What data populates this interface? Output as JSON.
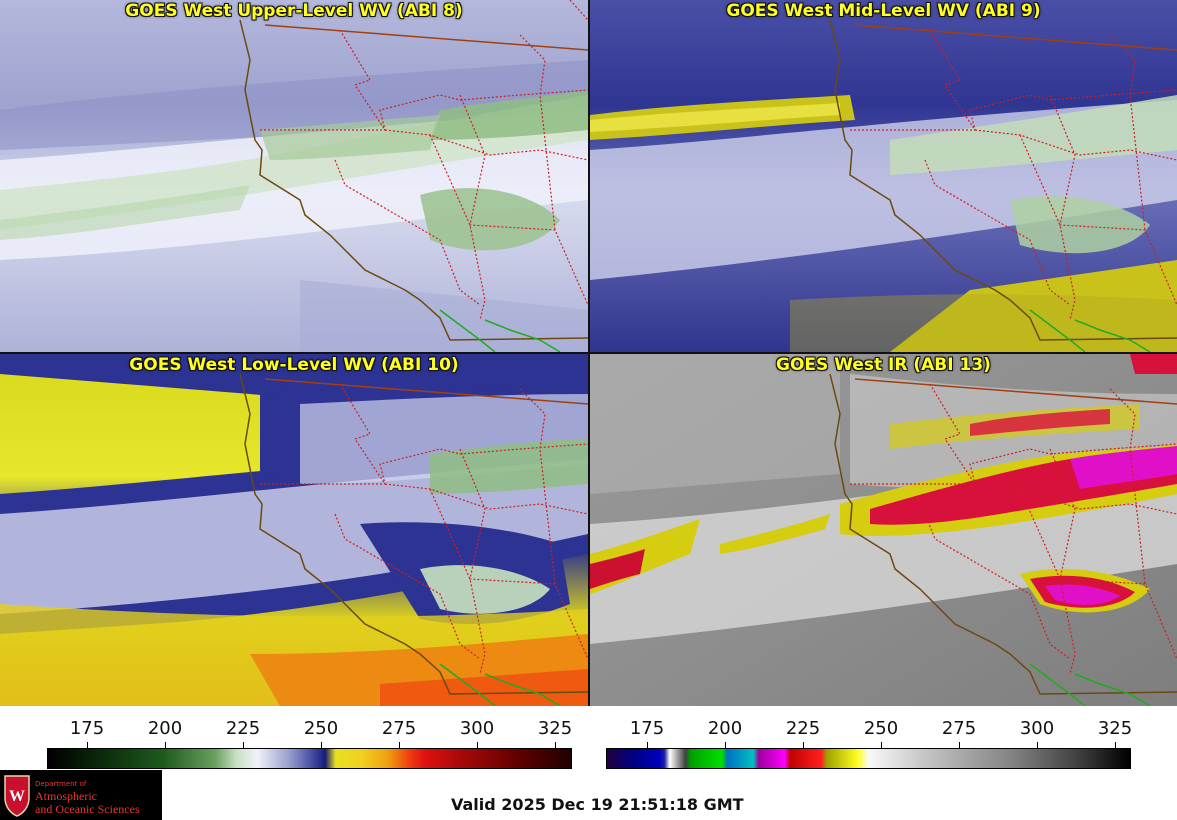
{
  "panels": [
    {
      "title": "GOES West Upper-Level WV (ABI 8)"
    },
    {
      "title": "GOES West Mid-Level WV (ABI 9)"
    },
    {
      "title": "GOES West Low-Level WV (ABI 10)"
    },
    {
      "title": "GOES West IR (ABI 13)"
    }
  ],
  "colorbars": {
    "wv": {
      "ticks": [
        "175",
        "200",
        "225",
        "250",
        "275",
        "300",
        "325"
      ]
    },
    "ir": {
      "ticks": [
        "175",
        "200",
        "225",
        "250",
        "275",
        "300",
        "325"
      ]
    }
  },
  "logo": {
    "department": "Department of",
    "line1": "Atmospheric",
    "line2": "and Oceanic Sciences"
  },
  "valid_time": "Valid 2025 Dec 19 21:51:18 GMT",
  "colors": {
    "coast": "#6a4a10",
    "state_border": "#cc2020",
    "country_border": "#a04010",
    "mexico_border": "#22aa22",
    "title_text": "#ffff22"
  }
}
